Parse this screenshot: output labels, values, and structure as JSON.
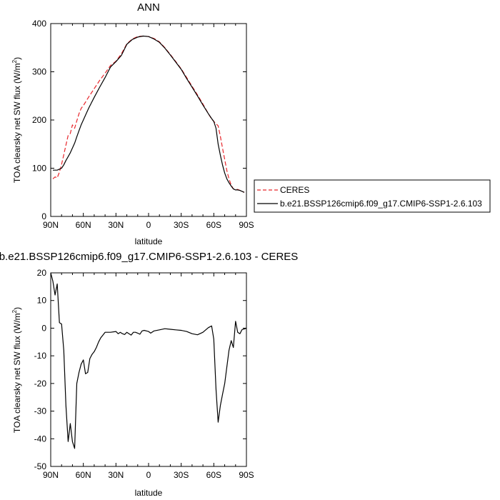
{
  "chart_data": [
    {
      "type": "line",
      "title": "ANN",
      "xlabel": "latitude",
      "ylabel": "TOA clearsky net SW flux (W/m",
      "ylabel_sup": "2",
      "ylabel_close": ")",
      "xlim": [
        90,
        -90
      ],
      "ylim": [
        0,
        400
      ],
      "xticks": [
        90,
        60,
        30,
        0,
        -30,
        -60,
        -90
      ],
      "xtick_labels": [
        "90N",
        "60N",
        "30N",
        "0",
        "30S",
        "60S",
        "90S"
      ],
      "yticks": [
        0,
        100,
        200,
        300,
        400
      ],
      "ytick_labels": [
        "0",
        "100",
        "200",
        "300",
        "400"
      ],
      "legend_position": "right",
      "series": [
        {
          "name": "CERES",
          "color": "#e8262b",
          "dash": "dashed",
          "x": [
            88,
            86,
            84,
            82,
            80,
            78,
            76,
            74,
            72,
            70,
            68,
            66,
            64,
            62,
            60,
            58,
            55,
            50,
            45,
            40,
            35,
            30,
            25,
            20,
            15,
            10,
            5,
            0,
            -5,
            -10,
            -15,
            -20,
            -25,
            -30,
            -35,
            -40,
            -45,
            -50,
            -55,
            -58,
            -60,
            -62,
            -64,
            -66,
            -68,
            -70,
            -72,
            -74,
            -76,
            -78,
            -80,
            -82,
            -84,
            -86,
            -88
          ],
          "y": [
            78,
            82,
            80,
            92,
            108,
            128,
            148,
            168,
            172,
            190,
            183,
            198,
            213,
            224,
            230,
            237,
            248,
            265,
            282,
            297,
            313,
            322,
            337,
            358,
            368,
            373,
            374,
            373,
            369,
            362,
            350,
            336,
            321,
            306,
            288,
            270,
            252,
            233,
            213,
            202,
            197,
            192,
            188,
            166,
            142,
            118,
            95,
            78,
            65,
            57,
            56,
            56,
            54,
            52,
            50
          ]
        },
        {
          "name": "b.e21.BSSP126cmip6.f09_g17.CMIP6-SSP1-2.6.103",
          "color": "#000000",
          "dash": "solid",
          "x": [
            88,
            86,
            84,
            82,
            80,
            78,
            76,
            74,
            72,
            70,
            68,
            66,
            64,
            62,
            60,
            58,
            55,
            50,
            45,
            40,
            35,
            30,
            25,
            20,
            15,
            10,
            5,
            0,
            -5,
            -10,
            -15,
            -20,
            -25,
            -30,
            -35,
            -40,
            -45,
            -50,
            -55,
            -58,
            -60,
            -62,
            -64,
            -66,
            -68,
            -70,
            -72,
            -74,
            -76,
            -78,
            -80,
            -82,
            -84,
            -86,
            -88
          ],
          "y": [
            96,
            96,
            96,
            98,
            100,
            107,
            116,
            124,
            132,
            142,
            152,
            165,
            178,
            190,
            200,
            210,
            225,
            247,
            268,
            288,
            310,
            321,
            334,
            357,
            367,
            372,
            374,
            373,
            368,
            361,
            349,
            335,
            320,
            305,
            286,
            268,
            250,
            231,
            213,
            203,
            197,
            183,
            150,
            127,
            107,
            90,
            78,
            70,
            63,
            57,
            55,
            55,
            54,
            52,
            50
          ]
        }
      ]
    },
    {
      "type": "line",
      "title": "b.e21.BSSP126cmip6.f09_g17.CMIP6-SSP1-2.6.103 - CERES",
      "xlabel": "latitude",
      "ylabel": "TOA clearsky net SW flux (W/m",
      "ylabel_sup": "2",
      "ylabel_close": ")",
      "xlim": [
        90,
        -90
      ],
      "ylim": [
        -50,
        20
      ],
      "xticks": [
        90,
        60,
        30,
        0,
        -30,
        -60,
        -90
      ],
      "xtick_labels": [
        "90N",
        "60N",
        "30N",
        "0",
        "30S",
        "60S",
        "90S"
      ],
      "yticks": [
        -50,
        -40,
        -30,
        -20,
        -10,
        0,
        10,
        20
      ],
      "ytick_labels": [
        "-50",
        "-40",
        "-30",
        "-20",
        "-10",
        "0",
        "10",
        "20"
      ],
      "series": [
        {
          "name": "",
          "color": "#000000",
          "dash": "solid",
          "x": [
            90,
            88,
            86,
            84,
            82,
            80,
            78,
            76,
            74,
            72,
            70,
            68,
            66,
            64,
            62,
            60,
            58,
            56,
            54,
            52,
            50,
            48,
            46,
            44,
            42,
            40,
            35,
            30,
            28,
            26,
            24,
            22,
            20,
            18,
            16,
            14,
            12,
            10,
            8,
            6,
            4,
            2,
            0,
            -2,
            -5,
            -10,
            -15,
            -20,
            -25,
            -30,
            -35,
            -40,
            -45,
            -50,
            -55,
            -58,
            -60,
            -62,
            -64,
            -66,
            -68,
            -70,
            -72,
            -74,
            -76,
            -78,
            -80,
            -82,
            -84,
            -86,
            -88,
            -90
          ],
          "y": [
            20,
            17,
            12,
            16,
            2,
            1.5,
            -8,
            -28,
            -41,
            -34.5,
            -41,
            -43.5,
            -20,
            -16,
            -13,
            -11.5,
            -16.5,
            -16,
            -11,
            -9.5,
            -8.5,
            -7,
            -5,
            -3.5,
            -2.5,
            -1.5,
            -1.5,
            -1.2,
            -2,
            -1.5,
            -2,
            -2.3,
            -1.5,
            -2,
            -2.5,
            -1.5,
            -1.5,
            -1.8,
            -2.2,
            -1,
            -0.8,
            -1,
            -1.2,
            -1.8,
            -1,
            -0.6,
            -0.2,
            -0.4,
            -0.6,
            -0.8,
            -1.2,
            -2,
            -2.4,
            -1.5,
            0.2,
            0.8,
            -4,
            -22,
            -34,
            -28,
            -24,
            -20,
            -14,
            -8,
            -4.5,
            -7,
            2.5,
            -1.5,
            -2,
            -0.5,
            -0.3,
            0
          ]
        }
      ]
    }
  ]
}
